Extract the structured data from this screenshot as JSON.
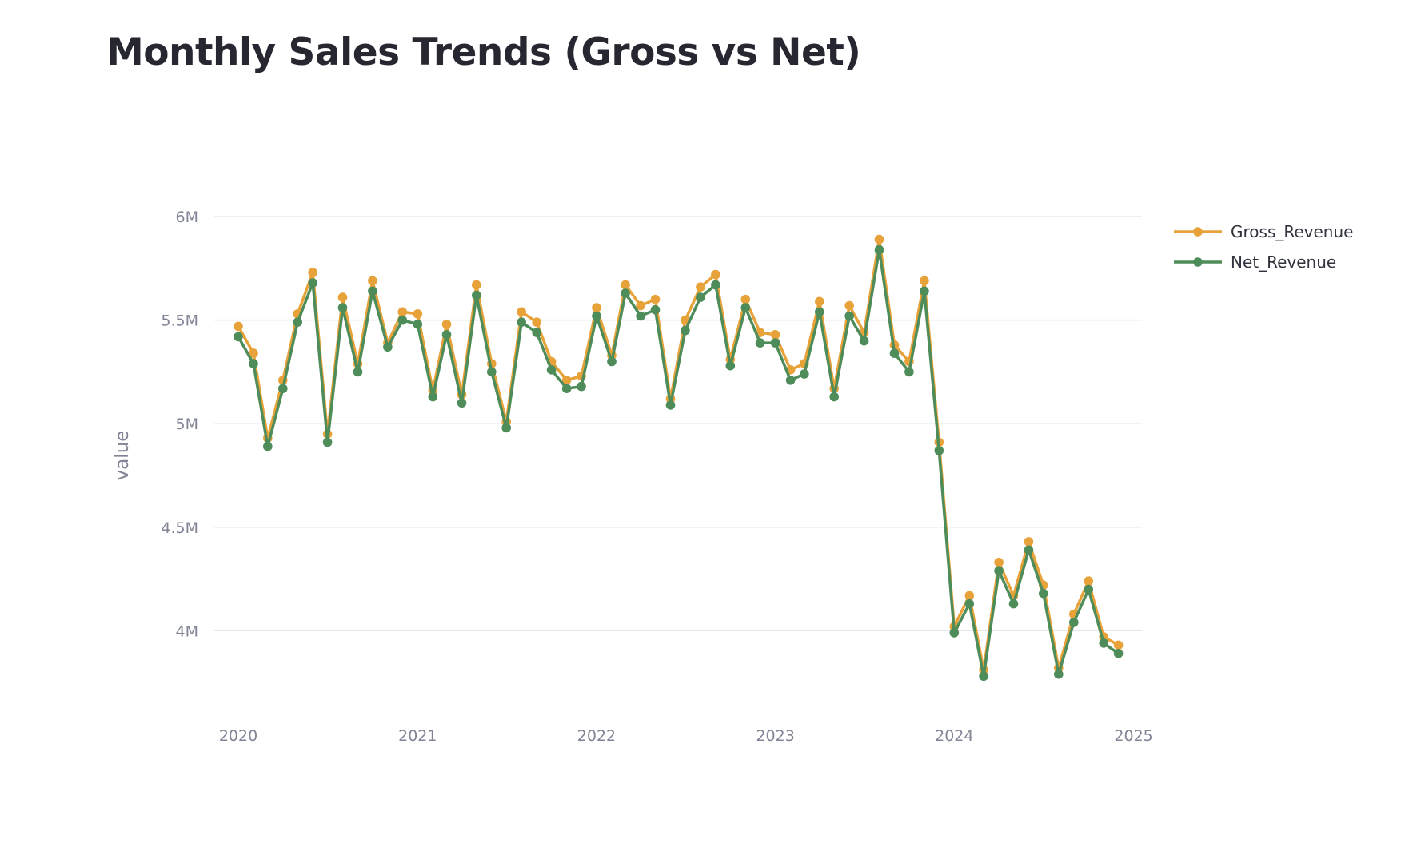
{
  "page": {
    "title": "Monthly Sales Trends (Gross vs Net)"
  },
  "chart_data": {
    "type": "line",
    "title": "Monthly Sales Trends (Gross vs Net)",
    "xlabel": "",
    "ylabel": "value",
    "grid": true,
    "legend_position": "top-right",
    "x_range": [
      "2019-11-13",
      "2025-01-18"
    ],
    "y_range": [
      3650000,
      6120000
    ],
    "x_ticks": [
      "2020",
      "2021",
      "2022",
      "2023",
      "2024",
      "2025"
    ],
    "x_tick_values": [
      "2020-01-01",
      "2021-01-01",
      "2022-01-01",
      "2023-01-01",
      "2024-01-01",
      "2025-01-01"
    ],
    "y_ticks": [
      "4M",
      "4.5M",
      "5M",
      "5.5M",
      "6M"
    ],
    "y_tick_values": [
      4000000,
      4500000,
      5000000,
      5500000,
      6000000
    ],
    "x": [
      "2020-01",
      "2020-02",
      "2020-03",
      "2020-04",
      "2020-05",
      "2020-06",
      "2020-07",
      "2020-08",
      "2020-09",
      "2020-10",
      "2020-11",
      "2020-12",
      "2021-01",
      "2021-02",
      "2021-03",
      "2021-04",
      "2021-05",
      "2021-06",
      "2021-07",
      "2021-08",
      "2021-09",
      "2021-10",
      "2021-11",
      "2021-12",
      "2022-01",
      "2022-02",
      "2022-03",
      "2022-04",
      "2022-05",
      "2022-06",
      "2022-07",
      "2022-08",
      "2022-09",
      "2022-10",
      "2022-11",
      "2022-12",
      "2023-01",
      "2023-02",
      "2023-03",
      "2023-04",
      "2023-05",
      "2023-06",
      "2023-07",
      "2023-08",
      "2023-09",
      "2023-10",
      "2023-11",
      "2023-12",
      "2024-01",
      "2024-02",
      "2024-03",
      "2024-04",
      "2024-05",
      "2024-06",
      "2024-07",
      "2024-08",
      "2024-09",
      "2024-10",
      "2024-11",
      "2024-12"
    ],
    "series": [
      {
        "name": "Gross_Revenue",
        "color": "#e8a23a",
        "values": [
          5470000,
          5340000,
          4930000,
          5210000,
          5530000,
          5730000,
          4950000,
          5610000,
          5290000,
          5690000,
          5390000,
          5540000,
          5530000,
          5160000,
          5480000,
          5140000,
          5670000,
          5290000,
          5010000,
          5540000,
          5490000,
          5300000,
          5210000,
          5230000,
          5560000,
          5330000,
          5670000,
          5570000,
          5600000,
          5120000,
          5500000,
          5660000,
          5720000,
          5310000,
          5600000,
          5440000,
          5430000,
          5260000,
          5290000,
          5590000,
          5170000,
          5570000,
          5440000,
          5890000,
          5380000,
          5300000,
          5690000,
          4910000,
          4020000,
          4170000,
          3810000,
          4330000,
          4170000,
          4430000,
          4220000,
          3820000,
          4080000,
          4240000,
          3970000,
          3930000
        ]
      },
      {
        "name": "Net_Revenue",
        "color": "#4e8c5a",
        "values": [
          5420000,
          5290000,
          4890000,
          5170000,
          5490000,
          5680000,
          4910000,
          5560000,
          5250000,
          5640000,
          5370000,
          5500000,
          5480000,
          5130000,
          5430000,
          5100000,
          5620000,
          5250000,
          4980000,
          5490000,
          5440000,
          5260000,
          5170000,
          5180000,
          5520000,
          5300000,
          5630000,
          5520000,
          5550000,
          5090000,
          5450000,
          5610000,
          5670000,
          5280000,
          5560000,
          5390000,
          5390000,
          5210000,
          5240000,
          5540000,
          5130000,
          5520000,
          5400000,
          5840000,
          5340000,
          5250000,
          5640000,
          4870000,
          3990000,
          4130000,
          3780000,
          4290000,
          4130000,
          4390000,
          4180000,
          3790000,
          4040000,
          4200000,
          3940000,
          3890000
        ]
      }
    ]
  }
}
